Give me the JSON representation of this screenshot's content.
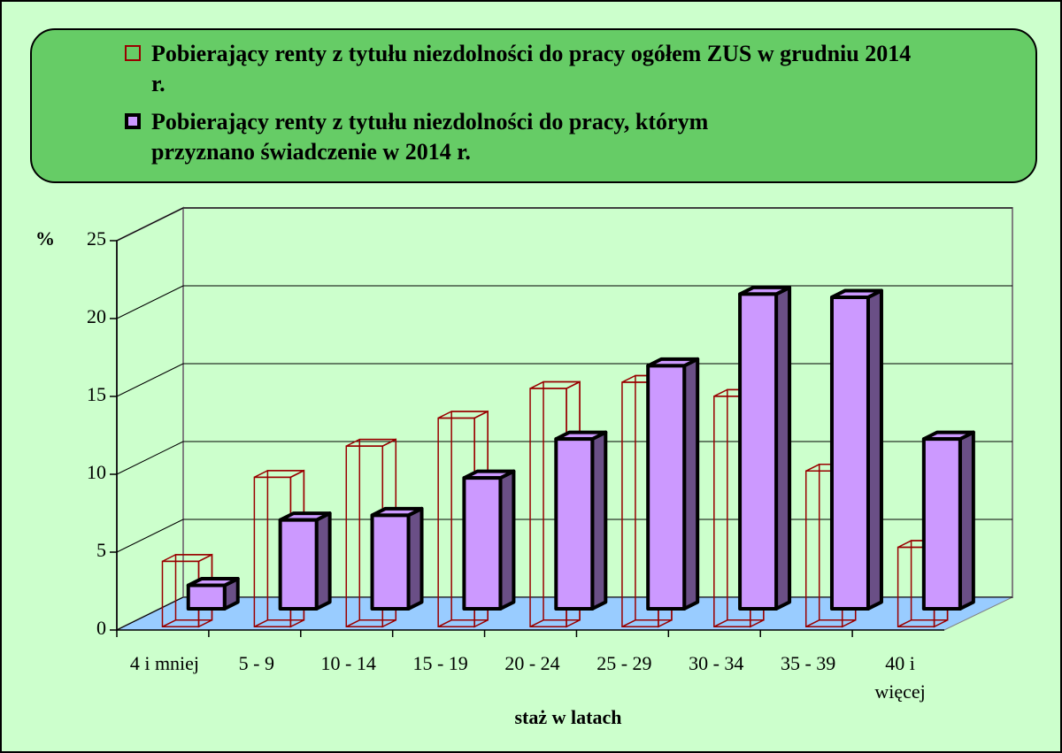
{
  "chart_data": {
    "type": "bar3d",
    "legend": {
      "corner": "top"
    },
    "y_label": "%",
    "x_label": "staż w latach",
    "categories": [
      "4 i mniej",
      "5 - 9",
      "10 - 14",
      "15 - 19",
      "20 - 24",
      "25 - 29",
      "30 - 34",
      "35 - 39",
      "40 i więcej"
    ],
    "series": [
      {
        "name": "Pobierający renty z tytułu niezdolności do pracy ogółem ZUS w grudniu 2014 r.",
        "color": "#990000",
        "style": "outline",
        "values": [
          4.2,
          9.6,
          11.6,
          13.4,
          15.3,
          15.7,
          14.8,
          10.0,
          5.1
        ]
      },
      {
        "name": "Pobierający renty z tytułu niezdolności do pracy, którym przyznano świadczenie w 2014 r.",
        "color": "#cc99ff",
        "style": "solid",
        "values": [
          1.5,
          5.7,
          6.0,
          8.4,
          10.9,
          15.6,
          20.2,
          20.0,
          10.9
        ]
      }
    ],
    "ylim": [
      0,
      25
    ],
    "yticks": [
      0,
      5,
      10,
      15,
      20,
      25
    ],
    "grid": true
  }
}
